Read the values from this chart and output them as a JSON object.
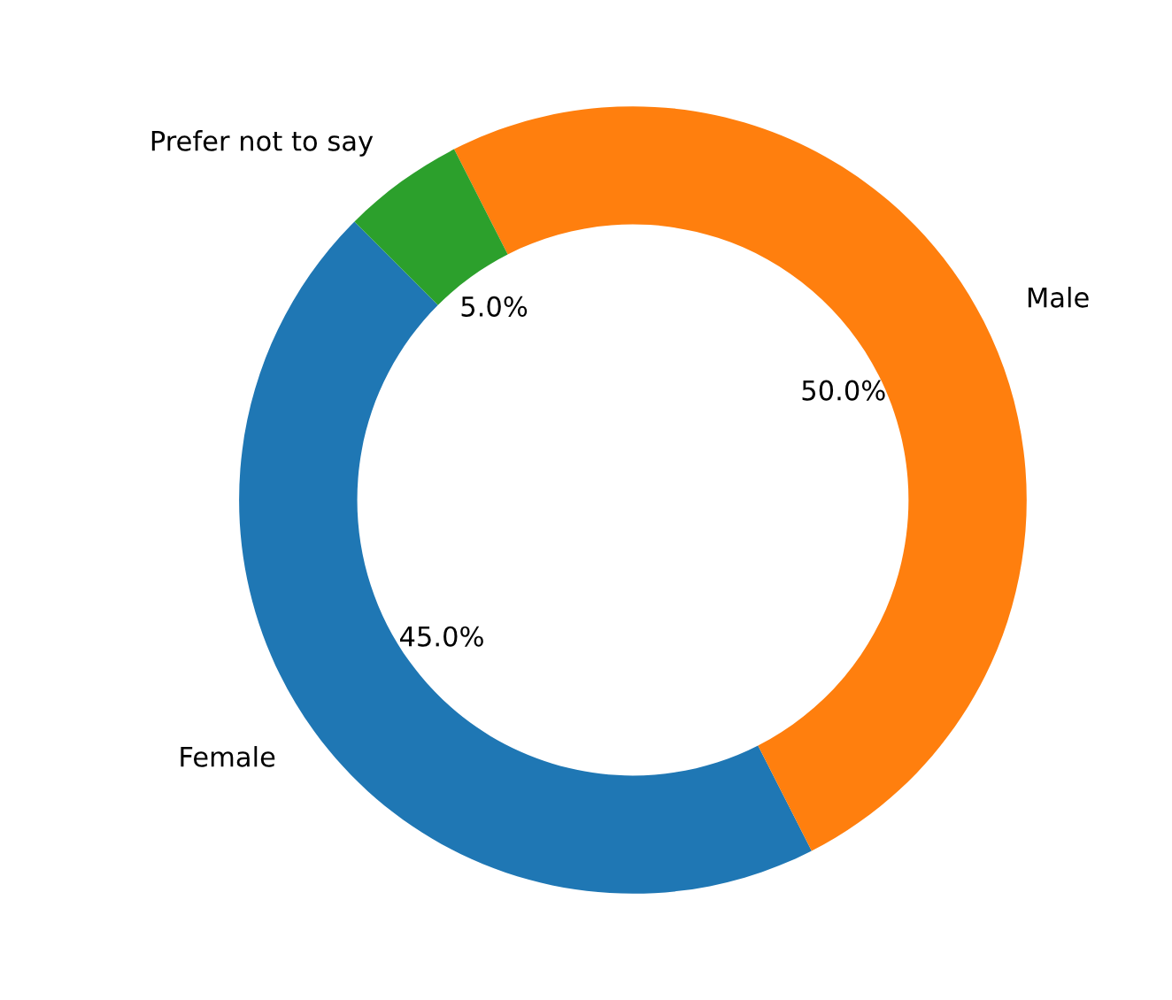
{
  "chart_data": {
    "type": "donut",
    "categories": [
      "Female",
      "Male",
      "Prefer not to say"
    ],
    "values": [
      45,
      50,
      5
    ],
    "colors": [
      "#1f77b4",
      "#ff7f0e",
      "#2ca02c"
    ],
    "value_labels": [
      "45.0%",
      "50.0%",
      "5.0%"
    ],
    "legend": false
  }
}
